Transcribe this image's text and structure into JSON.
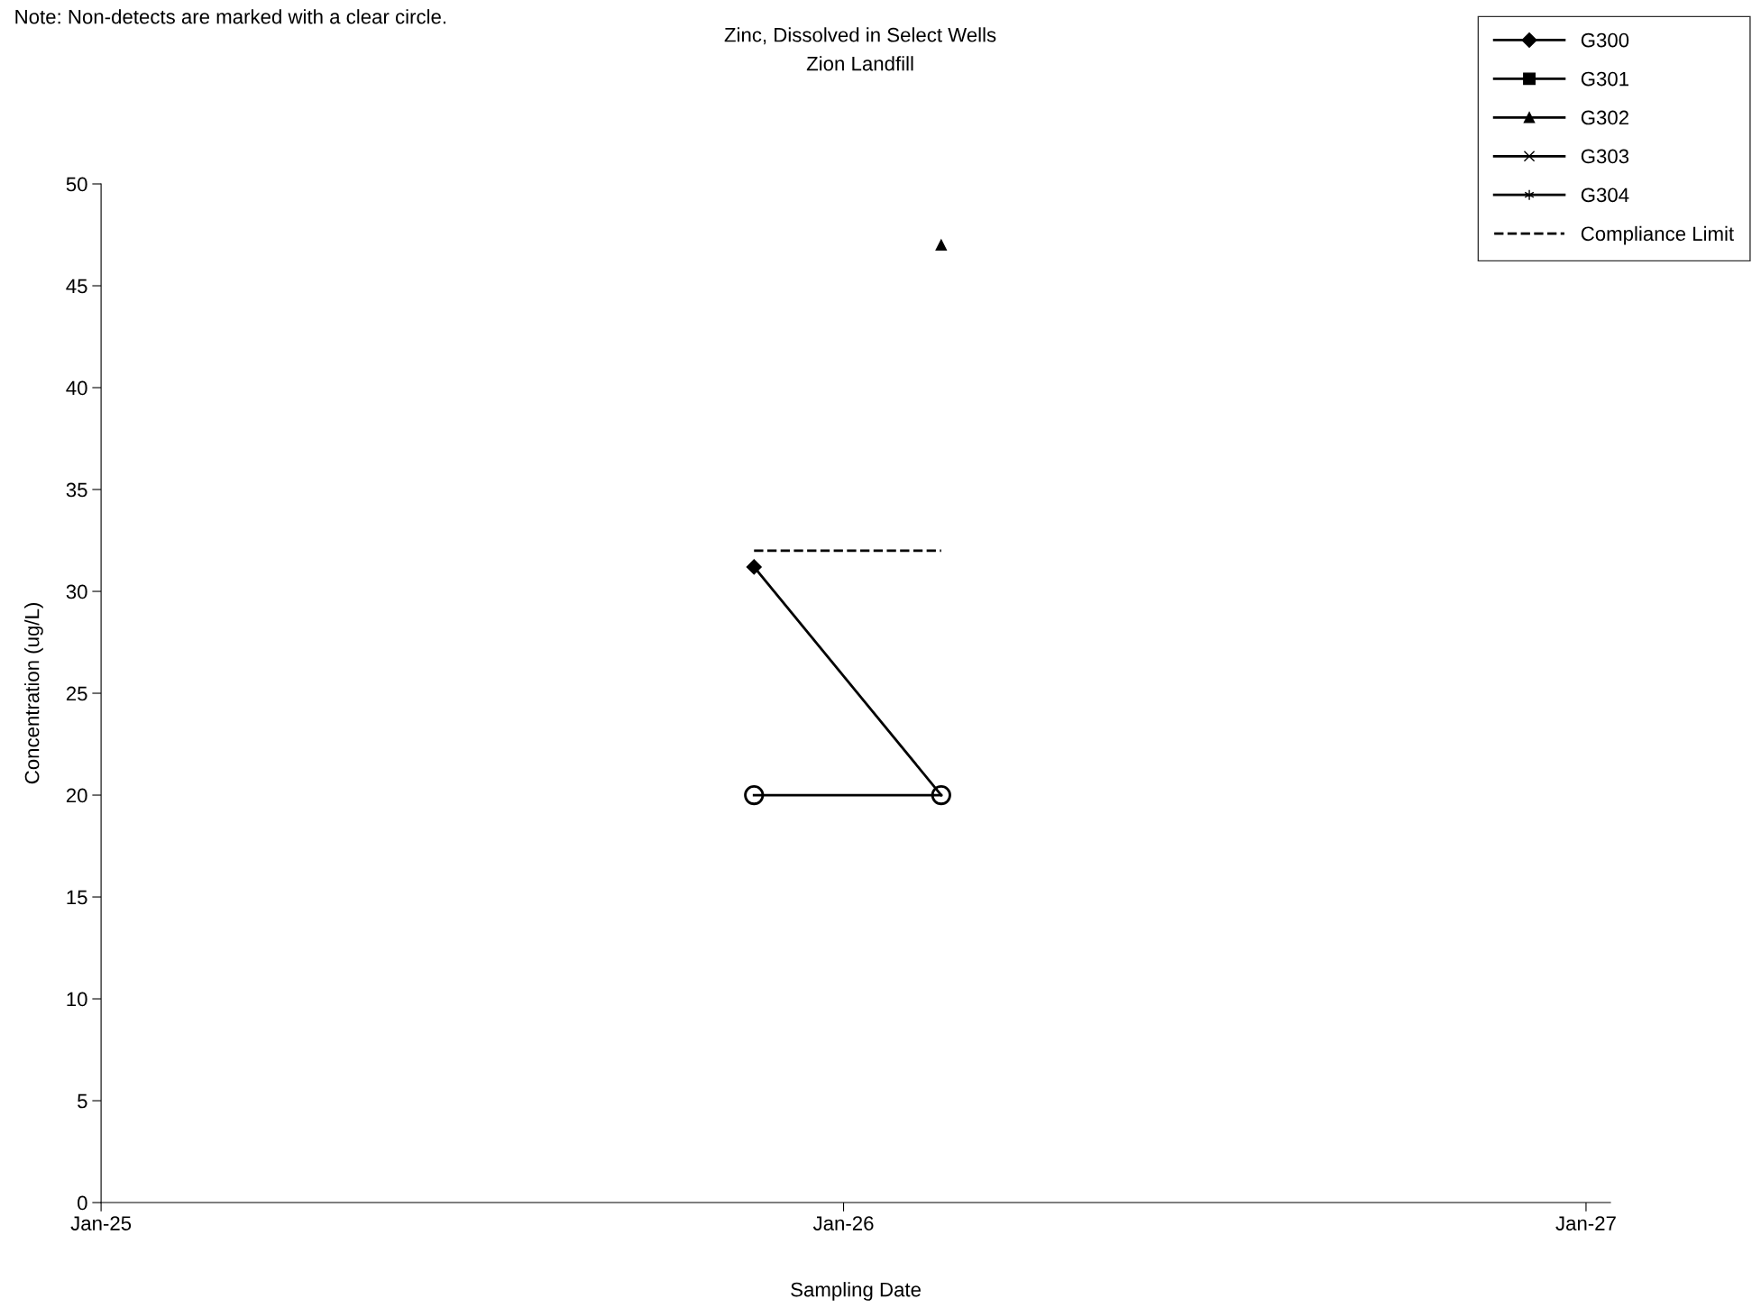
{
  "chart_data": {
    "type": "line",
    "title": "Zinc, Dissolved in Select Wells",
    "subtitle": "Zion Landfill",
    "xlabel": "Sampling Date",
    "ylabel": "Concentration (ug/L)",
    "annotations": [
      "Note: Non-detects are marked with a clear circle."
    ],
    "x": [
      "2025-11-18",
      "2026-02-18"
    ],
    "series": [
      {
        "name": "G300",
        "color": "#000000",
        "marker": "diamond",
        "values": [
          31.2,
          20
        ]
      },
      {
        "name": "G301",
        "color": "#000000",
        "marker": "square",
        "values": [
          20,
          20
        ]
      },
      {
        "name": "G302",
        "color": "#000000",
        "marker": "triangle",
        "values": [
          null,
          47
        ]
      },
      {
        "name": "G303",
        "color": "#000000",
        "marker": "cross",
        "values": [
          null,
          null
        ]
      },
      {
        "name": "G304",
        "color": "#000000",
        "marker": "star",
        "values": [
          null,
          null
        ]
      },
      {
        "name": "Compliance Limit",
        "color": "#000000",
        "marker": "none",
        "line_style": "dashed",
        "values": [
          32,
          32
        ]
      },
      {
        "type": "scatter",
        "color": "#000000",
        "marker": "circle",
        "x": [
          "2025-11-18",
          "2026-02-18"
        ],
        "values": [
          20,
          20
        ]
      }
    ],
    "xlim": [
      "2025-01-01",
      "2027-01-13"
    ],
    "xticks": [
      {
        "value": "2025-01-01",
        "label": "Jan-25"
      },
      {
        "value": "2026-01-01",
        "label": "Jan-26"
      },
      {
        "value": "2027-01-01",
        "label": "Jan-27"
      }
    ],
    "ylim": [
      0,
      50
    ],
    "yticks": [
      0,
      5,
      10,
      15,
      20,
      25,
      30,
      35,
      40,
      45,
      50
    ],
    "grid": false,
    "legend": "top right"
  }
}
